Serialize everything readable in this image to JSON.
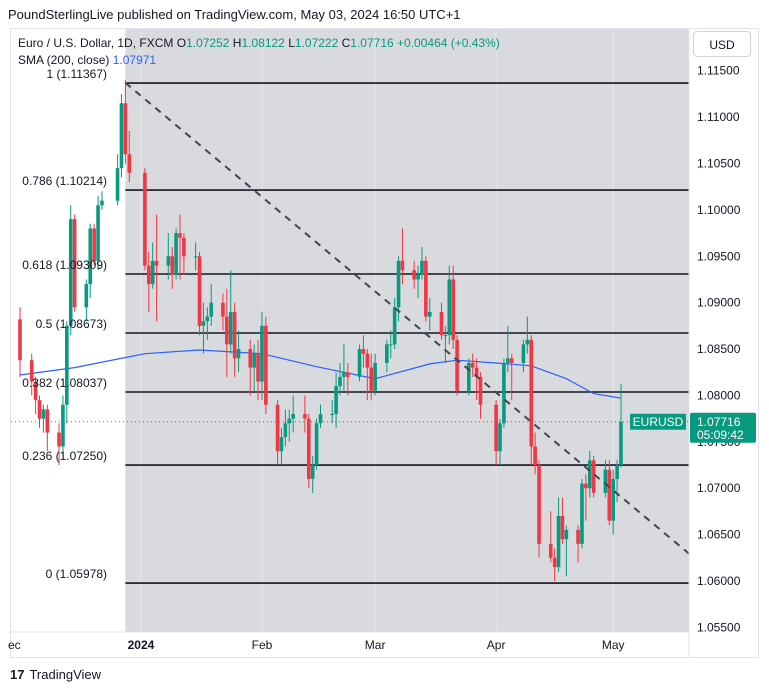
{
  "attribution": "PoundSterlingLive published on TradingView.com, May 03, 2024 16:50 UTC+1",
  "currency": "USD",
  "legend": {
    "title": "Euro / U.S. Dollar, 1D, FXCM",
    "o_label": "O",
    "o_value": "1.07252",
    "h_label": "H",
    "h_value": "1.08122",
    "l_label": "L",
    "l_value": "1.07222",
    "c_label": "C",
    "c_value": "1.07716",
    "change": "+0.00464 (+0.43%)",
    "sma_label": "SMA (200, close)",
    "sma_value": "1.07971"
  },
  "logo_text": "TradingView",
  "colors": {
    "up": "#089981",
    "down": "#f23645",
    "sma": "#2962ff",
    "shade": "#d9dadd",
    "fib_line": "#131722",
    "trend": "#434651"
  },
  "chart_data": {
    "type": "candlestick",
    "symbol": "EURUSD",
    "last_price": "1.07716",
    "countdown": "05:09:42",
    "ylim": [
      1.0545,
      1.1195
    ],
    "y_ticks": [
      "1.11500",
      "1.11000",
      "1.10500",
      "1.10000",
      "1.09500",
      "1.09000",
      "1.08500",
      "1.08000",
      "1.07500",
      "1.07000",
      "1.06500",
      "1.06000",
      "1.05500"
    ],
    "x_tick_labels": [
      "ec",
      "2024",
      "Feb",
      "Mar",
      "Apr",
      "May"
    ],
    "fib_levels": [
      {
        "label": "1 (1.11367)",
        "value": 1.11367
      },
      {
        "label": "0.786 (1.10214)",
        "value": 1.10214
      },
      {
        "label": "0.618 (1.09309)",
        "value": 1.09309
      },
      {
        "label": "0.5 (1.08673)",
        "value": 1.08673
      },
      {
        "label": "0.382 (1.08037)",
        "value": 1.08037
      },
      {
        "label": "0.236 (1.07250)",
        "value": 1.0725
      },
      {
        "label": "0 (1.05978)",
        "value": 1.05978
      }
    ],
    "trendline": {
      "from": [
        "2023-12-28",
        1.1137
      ],
      "to": [
        "2024-05-16",
        1.0645
      ]
    },
    "candles": [
      [
        "2023-12-01",
        1.0882,
        1.0895,
        1.082,
        1.0838
      ],
      [
        "2023-12-04",
        1.0838,
        1.0845,
        1.08,
        1.0815
      ],
      [
        "2023-12-05",
        1.0815,
        1.082,
        1.078,
        1.0795
      ],
      [
        "2023-12-06",
        1.0795,
        1.08,
        1.0765,
        1.0775
      ],
      [
        "2023-12-07",
        1.0775,
        1.079,
        1.076,
        1.0785
      ],
      [
        "2023-12-08",
        1.0785,
        1.079,
        1.074,
        1.076
      ],
      [
        "2023-12-11",
        1.076,
        1.077,
        1.0725,
        1.0745
      ],
      [
        "2023-12-12",
        1.0745,
        1.08,
        1.0735,
        1.079
      ],
      [
        "2023-12-13",
        1.079,
        1.088,
        1.077,
        1.0875
      ],
      [
        "2023-12-14",
        1.0875,
        1.1005,
        1.0865,
        1.099
      ],
      [
        "2023-12-15",
        1.099,
        1.0995,
        1.089,
        1.0895
      ],
      [
        "2023-12-18",
        1.0895,
        1.0925,
        1.088,
        1.092
      ],
      [
        "2023-12-19",
        1.092,
        1.0985,
        1.0905,
        1.098
      ],
      [
        "2023-12-20",
        1.098,
        1.0985,
        1.094,
        1.0945
      ],
      [
        "2023-12-21",
        1.0945,
        1.1015,
        1.0935,
        1.1005
      ],
      [
        "2023-12-22",
        1.1005,
        1.102,
        1.1,
        1.101
      ],
      [
        "2023-12-26",
        1.101,
        1.106,
        1.1005,
        1.1045
      ],
      [
        "2023-12-27",
        1.1045,
        1.1125,
        1.1035,
        1.1115
      ],
      [
        "2023-12-28",
        1.1115,
        1.114,
        1.105,
        1.106
      ],
      [
        "2023-12-29",
        1.106,
        1.1085,
        1.103,
        1.104
      ],
      [
        "2024-01-02",
        1.104,
        1.1045,
        1.0935,
        1.094
      ],
      [
        "2024-01-03",
        1.094,
        1.0955,
        1.089,
        1.092
      ],
      [
        "2024-01-04",
        1.092,
        1.0965,
        1.0915,
        1.0945
      ],
      [
        "2024-01-05",
        1.0945,
        1.0995,
        1.088,
        1.094
      ],
      [
        "2024-01-08",
        1.094,
        1.0975,
        1.0925,
        1.095
      ],
      [
        "2024-01-09",
        1.095,
        1.096,
        1.0915,
        1.093
      ],
      [
        "2024-01-10",
        1.093,
        1.098,
        1.0925,
        1.0975
      ],
      [
        "2024-01-11",
        1.0975,
        1.0995,
        1.0925,
        1.097
      ],
      [
        "2024-01-12",
        1.097,
        1.0975,
        1.093,
        1.095
      ],
      [
        "2024-01-15",
        1.095,
        1.0965,
        1.0935,
        1.095
      ],
      [
        "2024-01-16",
        1.095,
        1.0955,
        1.0865,
        1.0875
      ],
      [
        "2024-01-17",
        1.0875,
        1.09,
        1.0845,
        1.088
      ],
      [
        "2024-01-18",
        1.088,
        1.0895,
        1.086,
        1.0885
      ],
      [
        "2024-01-19",
        1.0885,
        1.092,
        1.0875,
        1.09
      ],
      [
        "2024-01-22",
        1.09,
        1.091,
        1.087,
        1.0885
      ],
      [
        "2024-01-23",
        1.0885,
        1.0915,
        1.082,
        1.0855
      ],
      [
        "2024-01-24",
        1.0855,
        1.0935,
        1.0845,
        1.089
      ],
      [
        "2024-01-25",
        1.089,
        1.09,
        1.082,
        1.084
      ],
      [
        "2024-01-26",
        1.084,
        1.087,
        1.0825,
        1.085
      ],
      [
        "2024-01-29",
        1.085,
        1.086,
        1.08,
        1.083
      ],
      [
        "2024-01-30",
        1.083,
        1.0855,
        1.0805,
        1.0845
      ],
      [
        "2024-01-31",
        1.0845,
        1.086,
        1.0795,
        1.0815
      ],
      [
        "2024-02-01",
        1.0815,
        1.089,
        1.0795,
        1.0875
      ],
      [
        "2024-02-02",
        1.0875,
        1.0885,
        1.078,
        1.079
      ],
      [
        "2024-02-05",
        1.079,
        1.0795,
        1.0725,
        1.074
      ],
      [
        "2024-02-06",
        1.074,
        1.0765,
        1.0725,
        1.0755
      ],
      [
        "2024-02-07",
        1.0755,
        1.0785,
        1.0745,
        1.077
      ],
      [
        "2024-02-08",
        1.077,
        1.0785,
        1.075,
        1.0775
      ],
      [
        "2024-02-09",
        1.0775,
        1.08,
        1.076,
        1.078
      ],
      [
        "2024-02-12",
        1.078,
        1.08,
        1.076,
        1.0775
      ],
      [
        "2024-02-13",
        1.0775,
        1.078,
        1.07,
        1.071
      ],
      [
        "2024-02-14",
        1.071,
        1.0735,
        1.0695,
        1.0725
      ],
      [
        "2024-02-15",
        1.0725,
        1.0775,
        1.072,
        1.077
      ],
      [
        "2024-02-16",
        1.077,
        1.079,
        1.0765,
        1.078
      ],
      [
        "2024-02-19",
        1.078,
        1.0795,
        1.077,
        1.078
      ],
      [
        "2024-02-20",
        1.078,
        1.0825,
        1.0765,
        1.081
      ],
      [
        "2024-02-21",
        1.081,
        1.0835,
        1.08,
        1.082
      ],
      [
        "2024-02-22",
        1.082,
        1.0855,
        1.0805,
        1.0825
      ],
      [
        "2024-02-23",
        1.0825,
        1.0835,
        1.08,
        1.082
      ],
      [
        "2024-02-26",
        1.082,
        1.0855,
        1.0815,
        1.085
      ],
      [
        "2024-02-27",
        1.085,
        1.0865,
        1.083,
        1.0845
      ],
      [
        "2024-02-28",
        1.0845,
        1.085,
        1.0795,
        1.083
      ],
      [
        "2024-02-29",
        1.083,
        1.0845,
        1.0795,
        1.0805
      ],
      [
        "2024-03-01",
        1.0805,
        1.0845,
        1.08,
        1.0835
      ],
      [
        "2024-03-04",
        1.0835,
        1.086,
        1.0825,
        1.0855
      ],
      [
        "2024-03-05",
        1.0855,
        1.087,
        1.084,
        1.0855
      ],
      [
        "2024-03-06",
        1.0855,
        1.0905,
        1.085,
        1.0895
      ],
      [
        "2024-03-07",
        1.0895,
        1.095,
        1.088,
        1.0945
      ],
      [
        "2024-03-08",
        1.0945,
        1.098,
        1.092,
        1.0935
      ],
      [
        "2024-03-11",
        1.0935,
        1.0945,
        1.0915,
        1.0925
      ],
      [
        "2024-03-12",
        1.0925,
        1.094,
        1.0905,
        1.093
      ],
      [
        "2024-03-13",
        1.093,
        1.096,
        1.0925,
        1.0945
      ],
      [
        "2024-03-14",
        1.0945,
        1.095,
        1.088,
        1.0885
      ],
      [
        "2024-03-15",
        1.0885,
        1.0905,
        1.087,
        1.089
      ],
      [
        "2024-03-18",
        1.089,
        1.09,
        1.086,
        1.0865
      ],
      [
        "2024-03-19",
        1.0865,
        1.0875,
        1.0835,
        1.0865
      ],
      [
        "2024-03-20",
        1.0865,
        1.094,
        1.0855,
        1.0925
      ],
      [
        "2024-03-21",
        1.0925,
        1.094,
        1.085,
        1.086
      ],
      [
        "2024-03-22",
        1.086,
        1.0865,
        1.08,
        1.0805
      ],
      [
        "2024-03-25",
        1.0805,
        1.084,
        1.08,
        1.0835
      ],
      [
        "2024-03-26",
        1.0835,
        1.0845,
        1.082,
        1.083
      ],
      [
        "2024-03-27",
        1.083,
        1.084,
        1.0795,
        1.082
      ],
      [
        "2024-03-28",
        1.082,
        1.0825,
        1.0775,
        1.079
      ],
      [
        "2024-04-01",
        1.079,
        1.0795,
        1.0725,
        1.074
      ],
      [
        "2024-04-02",
        1.074,
        1.0775,
        1.0725,
        1.077
      ],
      [
        "2024-04-03",
        1.077,
        1.084,
        1.0765,
        1.0835
      ],
      [
        "2024-04-04",
        1.0835,
        1.0875,
        1.0825,
        1.084
      ],
      [
        "2024-04-05",
        1.084,
        1.0845,
        1.0795,
        1.0835
      ],
      [
        "2024-04-08",
        1.0835,
        1.086,
        1.0825,
        1.0855
      ],
      [
        "2024-04-09",
        1.0855,
        1.0885,
        1.0845,
        1.086
      ],
      [
        "2024-04-10",
        1.086,
        1.0865,
        1.0725,
        1.0745
      ],
      [
        "2024-04-11",
        1.0745,
        1.076,
        1.0715,
        1.0725
      ],
      [
        "2024-04-12",
        1.0725,
        1.073,
        1.0625,
        1.064
      ],
      [
        "2024-04-15",
        1.064,
        1.0675,
        1.062,
        1.0625
      ],
      [
        "2024-04-16",
        1.0625,
        1.0635,
        1.06,
        1.0615
      ],
      [
        "2024-04-17",
        1.0615,
        1.069,
        1.061,
        1.067
      ],
      [
        "2024-04-18",
        1.067,
        1.069,
        1.064,
        1.0645
      ],
      [
        "2024-04-19",
        1.0645,
        1.066,
        1.0605,
        1.0655
      ],
      [
        "2024-04-22",
        1.0655,
        1.066,
        1.062,
        1.064
      ],
      [
        "2024-04-23",
        1.064,
        1.071,
        1.0635,
        1.0705
      ],
      [
        "2024-04-24",
        1.0705,
        1.0715,
        1.0665,
        1.07
      ],
      [
        "2024-04-25",
        1.07,
        1.074,
        1.069,
        1.073
      ],
      [
        "2024-04-26",
        1.073,
        1.0735,
        1.069,
        1.0695
      ],
      [
        "2024-04-29",
        1.0695,
        1.073,
        1.069,
        1.072
      ],
      [
        "2024-04-30",
        1.072,
        1.073,
        1.066,
        1.0665
      ],
      [
        "2024-05-01",
        1.0665,
        1.072,
        1.065,
        1.071
      ],
      [
        "2024-05-02",
        1.071,
        1.073,
        1.0685,
        1.0725
      ],
      [
        "2024-05-03",
        1.07252,
        1.08122,
        1.07222,
        1.07716
      ]
    ],
    "sma200": [
      [
        "2023-12-01",
        1.0822
      ],
      [
        "2023-12-15",
        1.083
      ],
      [
        "2024-01-02",
        1.0845
      ],
      [
        "2024-01-16",
        1.0849
      ],
      [
        "2024-02-01",
        1.0845
      ],
      [
        "2024-02-15",
        1.0831
      ],
      [
        "2024-03-01",
        1.0818
      ],
      [
        "2024-03-15",
        1.0834
      ],
      [
        "2024-03-22",
        1.0838
      ],
      [
        "2024-04-01",
        1.0835
      ],
      [
        "2024-04-10",
        1.0832
      ],
      [
        "2024-04-19",
        1.0818
      ],
      [
        "2024-04-26",
        1.0802
      ],
      [
        "2024-05-03",
        1.07971
      ]
    ]
  }
}
